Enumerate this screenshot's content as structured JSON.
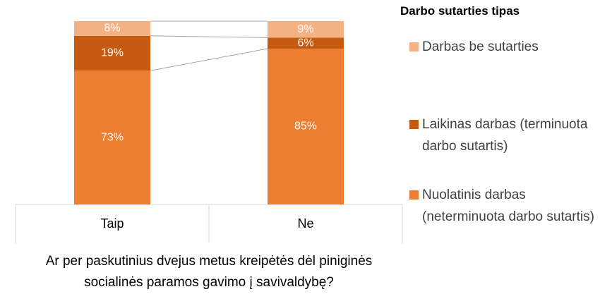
{
  "chart_data": {
    "type": "stacked-bar-100",
    "categories": [
      "Taip",
      "Ne"
    ],
    "x_axis_label": "Ar per paskutinius dvejus metus kreipėtės dėl piniginės socialinės paramos gavimo į savivaldybę?",
    "legend_title": "Darbo sutarties tipas",
    "series": [
      {
        "name": "Nuolatinis darbas (neterminuota darbo sutartis)",
        "color": "#ed7d31",
        "values": [
          73,
          85
        ],
        "value_labels": [
          "73%",
          "85%"
        ]
      },
      {
        "name": "Laikinas darbas (terminuota darbo sutartis)",
        "color": "#c55a11",
        "values": [
          19,
          6
        ],
        "value_labels": [
          "19%",
          "6%"
        ]
      },
      {
        "name": "Darbas be sutarties",
        "color": "#f4b183",
        "values": [
          8,
          9
        ],
        "value_labels": [
          "8%",
          "9%"
        ]
      }
    ]
  }
}
